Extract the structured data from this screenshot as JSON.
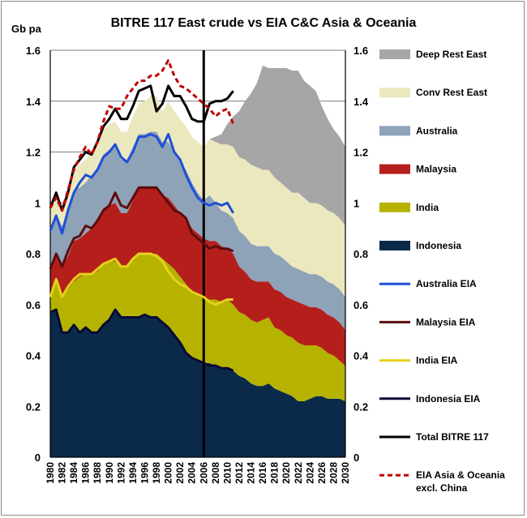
{
  "chart_data": {
    "type": "area",
    "title": "BITRE 117 East crude vs EIA C&C Asia & Oceania",
    "ylabel": "Gb pa",
    "ylim": [
      0,
      1.6
    ],
    "yticks": [
      "0",
      "0.2",
      "0.4",
      "0.6",
      "0.8",
      "1",
      "1.2",
      "1.4",
      "1.6"
    ],
    "xticks": [
      "1980",
      "1982",
      "1984",
      "1986",
      "1988",
      "1990",
      "1992",
      "1994",
      "1996",
      "1998",
      "2000",
      "2002",
      "2004",
      "2006",
      "2008",
      "2010",
      "2012",
      "2014",
      "2016",
      "2018",
      "2020",
      "2022",
      "2024",
      "2026",
      "2028",
      "2030"
    ],
    "xlim": [
      1980,
      2030
    ],
    "vline_x": 2006,
    "grid": "horizontal",
    "legend_position": "right",
    "x": [
      1980,
      1981,
      1982,
      1983,
      1984,
      1985,
      1986,
      1987,
      1988,
      1989,
      1990,
      1991,
      1992,
      1993,
      1994,
      1995,
      1996,
      1997,
      1998,
      1999,
      2000,
      2001,
      2002,
      2003,
      2004,
      2005,
      2006,
      2007,
      2008,
      2009,
      2010,
      2011,
      2012,
      2013,
      2014,
      2015,
      2016,
      2017,
      2018,
      2019,
      2020,
      2021,
      2022,
      2023,
      2024,
      2025,
      2026,
      2027,
      2028,
      2029,
      2030
    ],
    "stacked_series": [
      {
        "name": "Indonesia",
        "color": "#0b2a4a",
        "values": [
          0.57,
          0.58,
          0.49,
          0.49,
          0.52,
          0.49,
          0.51,
          0.49,
          0.49,
          0.52,
          0.54,
          0.58,
          0.55,
          0.55,
          0.55,
          0.55,
          0.56,
          0.55,
          0.55,
          0.53,
          0.51,
          0.48,
          0.45,
          0.41,
          0.39,
          0.38,
          0.37,
          0.37,
          0.36,
          0.35,
          0.35,
          0.34,
          0.32,
          0.31,
          0.29,
          0.28,
          0.28,
          0.29,
          0.27,
          0.26,
          0.25,
          0.24,
          0.22,
          0.22,
          0.23,
          0.24,
          0.24,
          0.23,
          0.23,
          0.23,
          0.22
        ]
      },
      {
        "name": "India",
        "color": "#b5b300",
        "values": [
          0.06,
          0.11,
          0.14,
          0.17,
          0.17,
          0.22,
          0.21,
          0.23,
          0.24,
          0.24,
          0.23,
          0.19,
          0.2,
          0.2,
          0.23,
          0.25,
          0.24,
          0.25,
          0.25,
          0.25,
          0.25,
          0.26,
          0.26,
          0.27,
          0.26,
          0.26,
          0.26,
          0.25,
          0.26,
          0.26,
          0.27,
          0.26,
          0.25,
          0.25,
          0.25,
          0.25,
          0.26,
          0.26,
          0.24,
          0.24,
          0.23,
          0.23,
          0.23,
          0.22,
          0.21,
          0.2,
          0.19,
          0.18,
          0.17,
          0.15,
          0.14
        ]
      },
      {
        "name": "Malaysia",
        "color": "#b51f1b",
        "values": [
          0.11,
          0.11,
          0.12,
          0.13,
          0.16,
          0.15,
          0.16,
          0.18,
          0.2,
          0.22,
          0.22,
          0.23,
          0.21,
          0.21,
          0.23,
          0.26,
          0.26,
          0.26,
          0.26,
          0.25,
          0.26,
          0.25,
          0.25,
          0.26,
          0.25,
          0.24,
          0.23,
          0.23,
          0.23,
          0.22,
          0.2,
          0.2,
          0.18,
          0.17,
          0.16,
          0.16,
          0.15,
          0.14,
          0.15,
          0.15,
          0.15,
          0.15,
          0.16,
          0.16,
          0.15,
          0.15,
          0.15,
          0.15,
          0.15,
          0.15,
          0.14
        ]
      },
      {
        "name": "Australia",
        "color": "#8ea2b8",
        "values": [
          0.14,
          0.15,
          0.16,
          0.18,
          0.2,
          0.2,
          0.2,
          0.21,
          0.21,
          0.21,
          0.22,
          0.22,
          0.21,
          0.21,
          0.21,
          0.21,
          0.21,
          0.22,
          0.22,
          0.21,
          0.22,
          0.21,
          0.2,
          0.19,
          0.18,
          0.16,
          0.15,
          0.18,
          0.15,
          0.14,
          0.14,
          0.14,
          0.14,
          0.14,
          0.14,
          0.14,
          0.14,
          0.14,
          0.14,
          0.14,
          0.14,
          0.13,
          0.13,
          0.13,
          0.13,
          0.13,
          0.13,
          0.13,
          0.13,
          0.13,
          0.13
        ]
      },
      {
        "name": "Conv Rest East",
        "color": "#ece8be",
        "values": [
          0.1,
          0.09,
          0.06,
          0.07,
          0.08,
          0.09,
          0.09,
          0.09,
          0.1,
          0.1,
          0.1,
          0.1,
          0.11,
          0.11,
          0.12,
          0.12,
          0.13,
          0.14,
          0.14,
          0.12,
          0.16,
          0.16,
          0.17,
          0.17,
          0.18,
          0.2,
          0.21,
          0.22,
          0.24,
          0.26,
          0.27,
          0.28,
          0.29,
          0.3,
          0.31,
          0.31,
          0.3,
          0.3,
          0.3,
          0.29,
          0.29,
          0.29,
          0.3,
          0.29,
          0.28,
          0.28,
          0.28,
          0.28,
          0.28,
          0.28,
          0.28
        ]
      },
      {
        "name": "Deep Rest East",
        "color": "#a6a6a6",
        "values": [
          0,
          0,
          0,
          0,
          0,
          0,
          0,
          0,
          0,
          0,
          0,
          0,
          0,
          0,
          0,
          0,
          0,
          0,
          0,
          0,
          0,
          0,
          0,
          0,
          0,
          0,
          0,
          0,
          0.02,
          0.04,
          0.08,
          0.12,
          0.18,
          0.23,
          0.28,
          0.33,
          0.41,
          0.4,
          0.43,
          0.45,
          0.47,
          0.48,
          0.48,
          0.46,
          0.46,
          0.44,
          0.39,
          0.36,
          0.33,
          0.32,
          0.31
        ]
      }
    ],
    "line_series": [
      {
        "name": "Australia EIA",
        "color": "#1f4fd6",
        "dash": "none",
        "x": [
          1980,
          1981,
          1982,
          1983,
          1984,
          1985,
          1986,
          1987,
          1988,
          1989,
          1990,
          1991,
          1992,
          1993,
          1994,
          1995,
          1996,
          1997,
          1998,
          1999,
          2000,
          2001,
          2002,
          2003,
          2004,
          2005,
          2006,
          2007,
          2008,
          2009,
          2010,
          2011
        ],
        "values": [
          0.89,
          0.95,
          0.88,
          0.97,
          1.04,
          1.08,
          1.11,
          1.1,
          1.13,
          1.18,
          1.2,
          1.23,
          1.18,
          1.16,
          1.2,
          1.26,
          1.26,
          1.27,
          1.26,
          1.22,
          1.27,
          1.2,
          1.17,
          1.11,
          1.06,
          1.02,
          1.0,
          0.99,
          1.0,
          0.99,
          1.0,
          0.96
        ]
      },
      {
        "name": "Malaysia EIA",
        "color": "#5c0d0d",
        "dash": "none",
        "x": [
          1980,
          1981,
          1982,
          1983,
          1984,
          1985,
          1986,
          1987,
          1988,
          1989,
          1990,
          1991,
          1992,
          1993,
          1994,
          1995,
          1996,
          1997,
          1998,
          1999,
          2000,
          2001,
          2002,
          2003,
          2004,
          2005,
          2006,
          2007,
          2008,
          2009,
          2010,
          2011
        ],
        "values": [
          0.74,
          0.8,
          0.75,
          0.81,
          0.86,
          0.87,
          0.91,
          0.9,
          0.93,
          0.97,
          0.99,
          1.04,
          0.99,
          0.98,
          1.02,
          1.06,
          1.06,
          1.06,
          1.06,
          1.03,
          1.0,
          0.97,
          0.96,
          0.94,
          0.88,
          0.86,
          0.84,
          0.82,
          0.83,
          0.82,
          0.82,
          0.81
        ]
      },
      {
        "name": "India EIA",
        "color": "#e6d11a",
        "dash": "none",
        "x": [
          1980,
          1981,
          1982,
          1983,
          1984,
          1985,
          1986,
          1987,
          1988,
          1989,
          1990,
          1991,
          1992,
          1993,
          1994,
          1995,
          1996,
          1997,
          1998,
          1999,
          2000,
          2001,
          2002,
          2003,
          2004,
          2005,
          2006,
          2007,
          2008,
          2009,
          2010,
          2011
        ],
        "values": [
          0.63,
          0.7,
          0.63,
          0.67,
          0.7,
          0.72,
          0.72,
          0.72,
          0.74,
          0.76,
          0.77,
          0.78,
          0.75,
          0.75,
          0.78,
          0.8,
          0.8,
          0.8,
          0.79,
          0.77,
          0.73,
          0.7,
          0.68,
          0.67,
          0.65,
          0.64,
          0.63,
          0.61,
          0.6,
          0.61,
          0.62,
          0.62
        ]
      },
      {
        "name": "Indonesia EIA",
        "color": "#0a0a33",
        "dash": "none",
        "x": [
          1980,
          1981,
          1982,
          1983,
          1984,
          1985,
          1986,
          1987,
          1988,
          1989,
          1990,
          1991,
          1992,
          1993,
          1994,
          1995,
          1996,
          1997,
          1998,
          1999,
          2000,
          2001,
          2002,
          2003,
          2004,
          2005,
          2006,
          2007,
          2008,
          2009,
          2010,
          2011
        ],
        "values": [
          0.57,
          0.58,
          0.49,
          0.49,
          0.52,
          0.49,
          0.51,
          0.49,
          0.49,
          0.52,
          0.54,
          0.58,
          0.55,
          0.55,
          0.55,
          0.55,
          0.56,
          0.55,
          0.55,
          0.53,
          0.51,
          0.48,
          0.45,
          0.41,
          0.39,
          0.38,
          0.37,
          0.36,
          0.36,
          0.35,
          0.35,
          0.34
        ]
      },
      {
        "name": "Total BITRE 117",
        "color": "#000000",
        "dash": "none",
        "x": [
          1980,
          1981,
          1982,
          1983,
          1984,
          1985,
          1986,
          1987,
          1988,
          1989,
          1990,
          1991,
          1992,
          1993,
          1994,
          1995,
          1996,
          1997,
          1998,
          1999,
          2000,
          2001,
          2002,
          2003,
          2004,
          2005,
          2006,
          2007,
          2008,
          2009,
          2010,
          2011
        ],
        "values": [
          0.98,
          1.04,
          0.97,
          1.04,
          1.14,
          1.17,
          1.2,
          1.19,
          1.24,
          1.3,
          1.33,
          1.37,
          1.33,
          1.33,
          1.38,
          1.44,
          1.45,
          1.46,
          1.36,
          1.39,
          1.46,
          1.42,
          1.42,
          1.38,
          1.33,
          1.32,
          1.32,
          1.39,
          1.4,
          1.4,
          1.41,
          1.44
        ]
      },
      {
        "name": "EIA Asia & Oceania excl. China",
        "color": "#c00000",
        "dash": "6,4",
        "x": [
          1980,
          1981,
          1982,
          1983,
          1984,
          1985,
          1986,
          1987,
          1988,
          1989,
          1990,
          1991,
          1992,
          1993,
          1994,
          1995,
          1996,
          1997,
          1998,
          1999,
          2000,
          2001,
          2002,
          2003,
          2004,
          2005,
          2006,
          2007,
          2008,
          2009,
          2010,
          2011
        ],
        "values": [
          0.98,
          1.02,
          0.97,
          1.05,
          1.13,
          1.18,
          1.22,
          1.19,
          1.24,
          1.32,
          1.38,
          1.37,
          1.37,
          1.42,
          1.45,
          1.48,
          1.48,
          1.5,
          1.5,
          1.52,
          1.56,
          1.5,
          1.46,
          1.45,
          1.43,
          1.41,
          1.39,
          1.37,
          1.34,
          1.36,
          1.37,
          1.31
        ]
      }
    ],
    "legend": [
      {
        "label": "Deep Rest East",
        "kind": "area",
        "color": "#a6a6a6"
      },
      {
        "label": "Conv Rest East",
        "kind": "area",
        "color": "#ece8be"
      },
      {
        "label": "Australia",
        "kind": "area",
        "color": "#8ea2b8"
      },
      {
        "label": "Malaysia",
        "kind": "area",
        "color": "#b51f1b"
      },
      {
        "label": "India",
        "kind": "area",
        "color": "#b5b300"
      },
      {
        "label": "Indonesia",
        "kind": "area",
        "color": "#0b2a4a"
      },
      {
        "label": "Australia EIA",
        "kind": "line",
        "color": "#1f4fd6"
      },
      {
        "label": "Malaysia EIA",
        "kind": "line",
        "color": "#5c0d0d"
      },
      {
        "label": "India EIA",
        "kind": "line",
        "color": "#e6d11a"
      },
      {
        "label": "Indonesia EIA",
        "kind": "line",
        "color": "#0a0a33"
      },
      {
        "label": "Total BITRE 117",
        "kind": "line",
        "color": "#000000"
      },
      {
        "label": "EIA Asia & Oceania excl. China",
        "kind": "dashed",
        "color": "#c00000"
      }
    ]
  }
}
